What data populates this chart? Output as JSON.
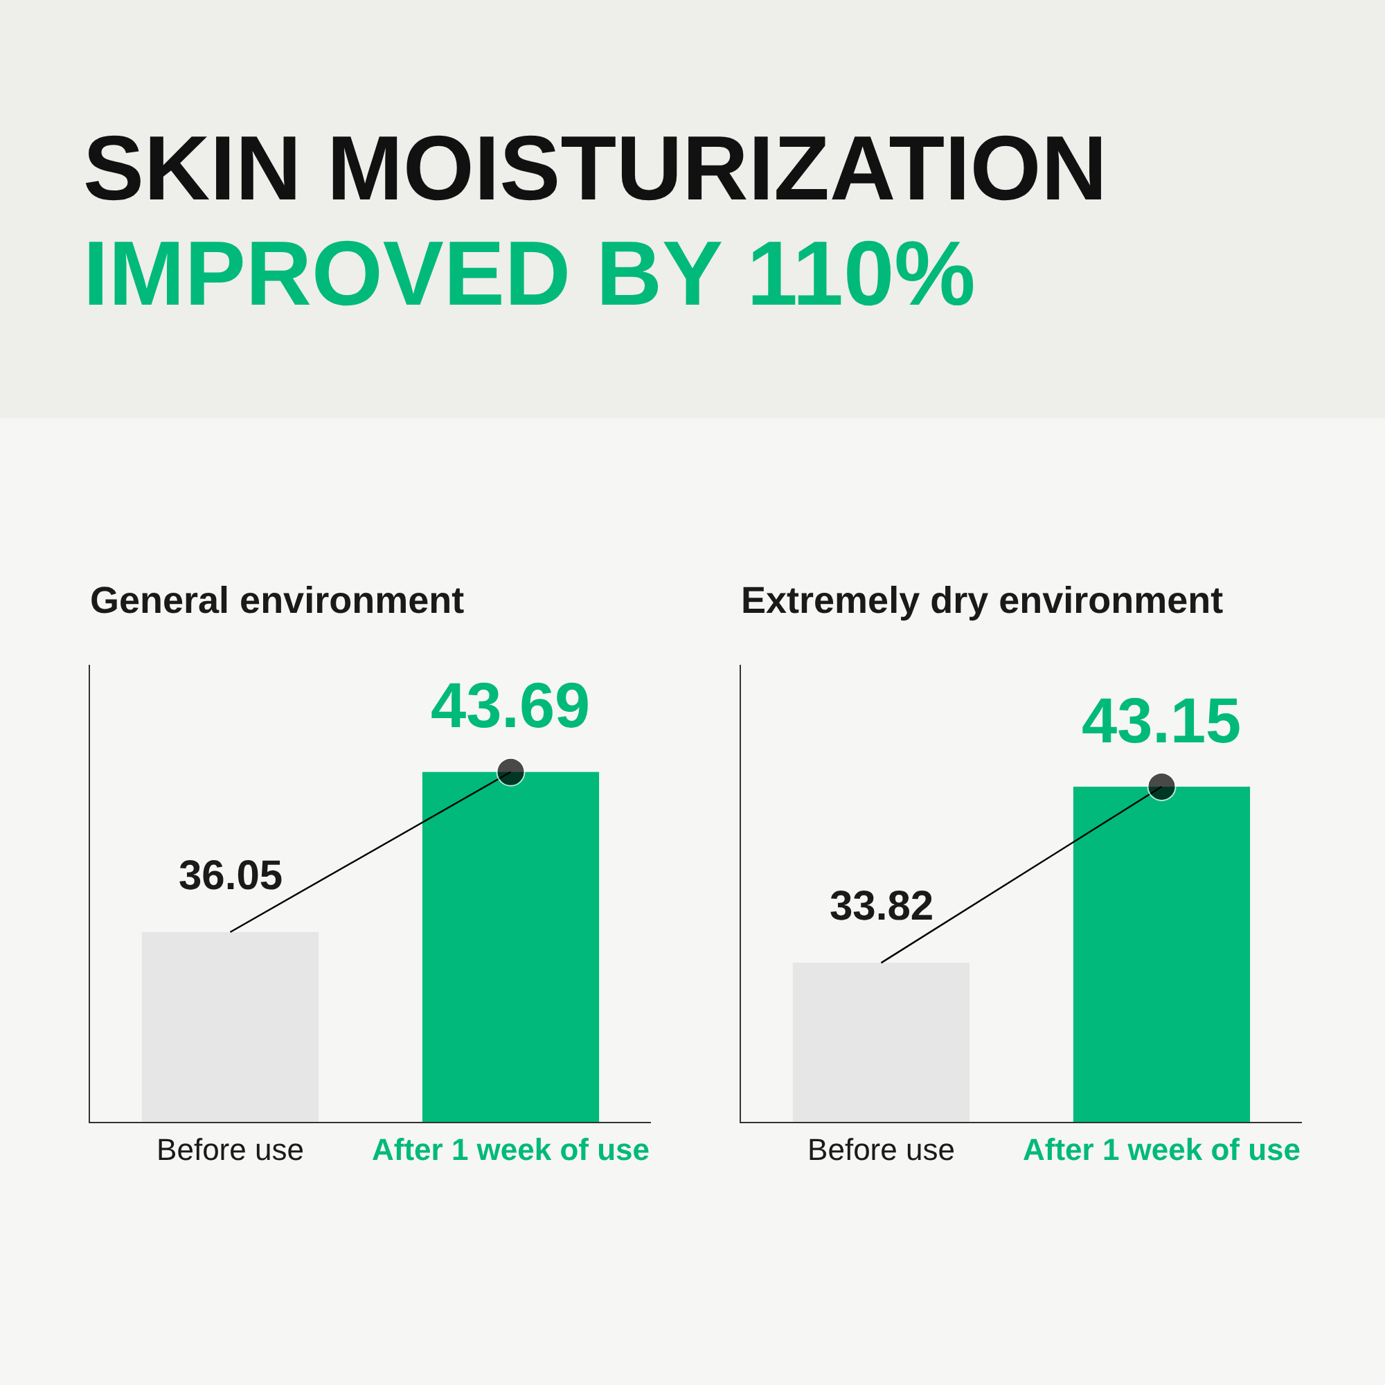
{
  "chart_data": [
    {
      "type": "other",
      "title": "SKIN MOISTURIZATION",
      "subtitle": "IMPROVED BY 110%"
    },
    {
      "type": "bar",
      "title": "General environment",
      "categories": [
        "Before use",
        "After 1 week of use"
      ],
      "ylim": [
        27,
        48.8
      ],
      "tick_labels": "x",
      "marker": "circle",
      "series": [
        {
          "type": "bar",
          "colors": [
            "#e6e6e6",
            "#00b97a"
          ],
          "values": [
            36.05,
            43.69
          ],
          "value_labels": [
            "36.05",
            "43.69"
          ]
        },
        {
          "type": "line",
          "color": "#000000",
          "values": [
            36.05,
            43.69
          ]
        }
      ]
    },
    {
      "type": "bar",
      "title": "Extremely dry environment",
      "categories": [
        "Before use",
        "After 1 week of use"
      ],
      "ylim": [
        25.4,
        49.6
      ],
      "tick_labels": "x",
      "marker": "circle",
      "series": [
        {
          "type": "bar",
          "colors": [
            "#e6e6e6",
            "#00b97a"
          ],
          "values": [
            33.82,
            43.15
          ],
          "value_labels": [
            "33.82",
            "43.15"
          ]
        },
        {
          "type": "line",
          "color": "#000000",
          "values": [
            33.82,
            43.15
          ]
        }
      ]
    }
  ]
}
